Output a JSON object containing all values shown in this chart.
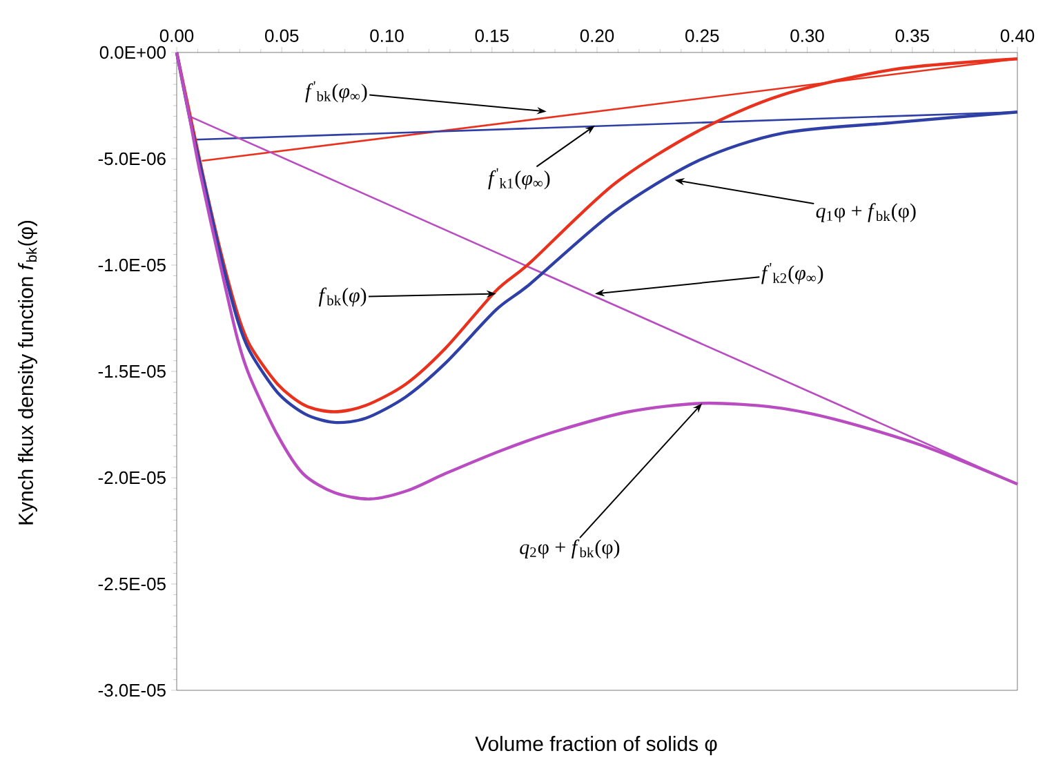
{
  "chart_data": {
    "type": "line",
    "xlabel": "Volume fraction of solids φ",
    "ylabel": "Kynch fkux density function *f*$_{bk}$(φ)",
    "xlim": [
      0,
      0.4
    ],
    "ylim": [
      -3e-05,
      0
    ],
    "xticks": [
      {
        "value": 0,
        "label": "0.00"
      },
      {
        "value": 0.05,
        "label": "0.05"
      },
      {
        "value": 0.1,
        "label": "0.10"
      },
      {
        "value": 0.15,
        "label": "0.15"
      },
      {
        "value": 0.2,
        "label": "0.20"
      },
      {
        "value": 0.25,
        "label": "0.25"
      },
      {
        "value": 0.3,
        "label": "0.30"
      },
      {
        "value": 0.35,
        "label": "0.35"
      },
      {
        "value": 0.4,
        "label": "0.40"
      }
    ],
    "yticks": [
      {
        "value": 0,
        "label": "0.0E+00"
      },
      {
        "value": -5e-06,
        "label": "-5.0E-06"
      },
      {
        "value": -1e-05,
        "label": "-1.0E-05"
      },
      {
        "value": -1.5e-05,
        "label": "-1.5E-05"
      },
      {
        "value": -2e-05,
        "label": "-2.0E-05"
      },
      {
        "value": -2.5e-05,
        "label": "-2.5E-05"
      },
      {
        "value": -3e-05,
        "label": "-3.0E-05"
      }
    ],
    "series": [
      {
        "color": "#e8321e",
        "x": [
          0.012,
          0.4
        ],
        "values": [
          -5.1e-06,
          -3e-07
        ]
      },
      {
        "color": "#2e3fa6",
        "x": [
          0.009,
          0.4
        ],
        "values": [
          -4.1e-06,
          -2.8e-06
        ]
      },
      {
        "color": "#b84cc0",
        "x": [
          0.006,
          0.4
        ],
        "values": [
          -3e-06,
          -2.03e-05
        ]
      },
      {
        "color": "#e8321e",
        "x": [
          0,
          0.006,
          0.013,
          0.021,
          0.029,
          0.035,
          0.048,
          0.061,
          0.075,
          0.09,
          0.109,
          0.128,
          0.152,
          0.168,
          0.208,
          0.248,
          0.288,
          0.341,
          0.4
        ],
        "values": [
          0,
          null,
          -6e-06,
          -9.4e-06,
          -1.23e-05,
          -1.38e-05,
          -1.56e-05,
          -1.66e-05,
          -1.69e-05,
          -1.66e-05,
          -1.56e-05,
          -1.39e-05,
          -1.12e-05,
          -9.9e-06,
          -6.2e-06,
          -3.7e-06,
          -2e-06,
          -8e-07,
          -3e-07
        ]
      },
      {
        "color": "#2e3fa6",
        "x": [
          0,
          0.006,
          0.013,
          0.021,
          0.029,
          0.035,
          0.048,
          0.061,
          0.075,
          0.09,
          0.109,
          0.128,
          0.152,
          0.168,
          0.208,
          0.248,
          0.288,
          0.341,
          0.4
        ],
        "values": [
          0,
          -3e-06,
          -6.1e-06,
          -9.6e-06,
          -1.26e-05,
          -1.41e-05,
          -1.6e-05,
          -1.7e-05,
          -1.74e-05,
          -1.72e-05,
          -1.62e-05,
          -1.46e-05,
          -1.21e-05,
          -1.09e-05,
          -7.5e-06,
          -5.1e-06,
          -3.8e-06,
          -3.3e-06,
          -2.8e-06
        ]
      },
      {
        "color": "#b84cc0",
        "x": [
          0,
          0.006,
          0.011,
          0.021,
          0.029,
          0.035,
          0.048,
          0.06,
          0.075,
          0.092,
          0.11,
          0.128,
          0.155,
          0.181,
          0.215,
          0.25,
          0.285,
          0.315,
          0.355,
          0.4
        ],
        "values": [
          0,
          -3e-06,
          -5.6e-06,
          -1.01e-05,
          -1.35e-05,
          -1.53e-05,
          -1.8e-05,
          -1.98e-05,
          -2.07e-05,
          -2.1e-05,
          -2.06e-05,
          -1.98e-05,
          -1.87e-05,
          -1.78e-05,
          -1.69e-05,
          -1.65e-05,
          -1.67e-05,
          -1.73e-05,
          -1.85e-05,
          -2.03e-05
        ]
      }
    ],
    "annotations": [
      {
        "text": "*f*$^{'}$$_{bk}$(*φ*$_{∞}$)",
        "x": 0.176,
        "y": -2.78e-06
      },
      {
        "text": "*f*$^{'}$$_{k1}$(*φ*$_{∞}$)",
        "x": 0.199,
        "y": -3.44e-06
      },
      {
        "text": "*q*$_{1}$φ + *f*$_{bk}$(φ)",
        "x": 0.237,
        "y": -6e-06
      },
      {
        "text": "*f*$^{'}$$_{k2}$(*φ*$_{∞}$)",
        "x": 0.199,
        "y": -1.135e-05
      },
      {
        "text": "*f*$_{bk}$(*φ*)",
        "x": 0.152,
        "y": -1.135e-05
      },
      {
        "text": "*q*$_{2}$φ + *f*$_{bk}$(φ)",
        "x": 0.25,
        "y": -1.65e-05
      }
    ]
  }
}
